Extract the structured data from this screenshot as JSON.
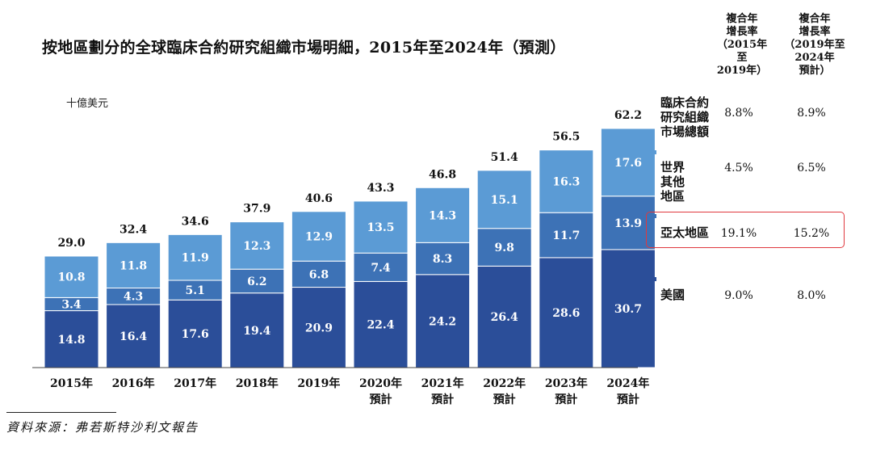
{
  "chart_data": {
    "type": "bar",
    "stacked": true,
    "title": "按地區劃分的全球臨床合約研究組織市場明細，2015年至2024年（預測）",
    "unit_label": "十億美元",
    "categories": [
      "2015年",
      "2016年",
      "2017年",
      "2018年",
      "2019年",
      "2020年\n預計",
      "2021年\n預計",
      "2022年\n預計",
      "2023年\n預計",
      "2024年\n預計"
    ],
    "series": [
      {
        "name": "美國",
        "color": "#2b4e99",
        "values": [
          14.8,
          16.4,
          17.6,
          19.4,
          20.9,
          22.4,
          24.2,
          26.4,
          28.6,
          30.7
        ]
      },
      {
        "name": "亞太地區",
        "color": "#3d72b6",
        "values": [
          3.4,
          4.3,
          5.1,
          6.2,
          6.8,
          7.4,
          8.3,
          9.8,
          11.7,
          13.9
        ]
      },
      {
        "name": "世界其他地區",
        "color": "#5b9bd5",
        "values": [
          10.8,
          11.8,
          11.9,
          12.3,
          12.9,
          13.5,
          14.3,
          15.1,
          16.3,
          17.6
        ]
      }
    ],
    "totals": [
      29.0,
      32.4,
      34.6,
      37.9,
      40.6,
      43.3,
      46.8,
      51.4,
      56.5,
      62.2
    ],
    "ylim": [
      0,
      62.2
    ]
  },
  "cagr_table": {
    "headers": [
      "複合年\n增長率\n（2015年\n至\n2019年）",
      "複合年\n增長率\n（2019年至\n2024年\n預計）"
    ],
    "rows": [
      {
        "label": "臨床合約\n研究組織\n市場總額",
        "cagr_2015_2019": "8.8%",
        "cagr_2019_2024": "8.9%",
        "marker_color": ""
      },
      {
        "label": "世界\n其他\n地區",
        "cagr_2015_2019": "4.5%",
        "cagr_2019_2024": "6.5%",
        "marker_color": "#5b9bd5"
      },
      {
        "label": "亞太地區",
        "cagr_2015_2019": "19.1%",
        "cagr_2019_2024": "15.2%",
        "marker_color": "#3d72b6"
      },
      {
        "label": "美國",
        "cagr_2015_2019": "9.0%",
        "cagr_2019_2024": "8.0%",
        "marker_color": "#2b4e99"
      }
    ],
    "highlight_color": "#e0393e"
  },
  "source": "資料來源：弗若斯特沙利文報告"
}
